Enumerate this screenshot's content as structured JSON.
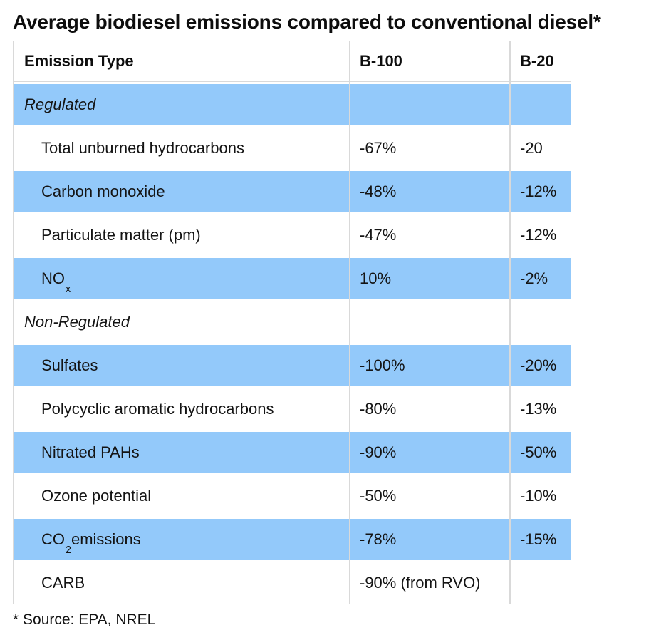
{
  "title": "Average biodiesel emissions compared to conventional diesel*",
  "footnote": "* Source: EPA, NREL",
  "colors": {
    "row_shaded": "#93c9fa",
    "border": "#d9d9d9",
    "text": "#141414"
  },
  "chart_data": {
    "type": "table",
    "title": "Average biodiesel emissions compared to conventional diesel*",
    "columns": [
      "Emission Type",
      "B-100",
      "B-20"
    ],
    "rows": [
      {
        "type": "section",
        "shaded": true,
        "label": "Regulated",
        "label_sub": "",
        "label_rest": "",
        "b100": "",
        "b20": ""
      },
      {
        "type": "item",
        "shaded": false,
        "label": "Total unburned hydrocarbons",
        "label_sub": "",
        "label_rest": "",
        "b100": "-67%",
        "b20": "-20"
      },
      {
        "type": "item",
        "shaded": true,
        "label": "Carbon monoxide",
        "label_sub": "",
        "label_rest": "",
        "b100": "-48%",
        "b20": "-12%"
      },
      {
        "type": "item",
        "shaded": false,
        "label": "Particulate matter (pm)",
        "label_sub": "",
        "label_rest": "",
        "b100": "-47%",
        "b20": "-12%"
      },
      {
        "type": "item",
        "shaded": true,
        "label": "NO",
        "label_sub": "x",
        "label_rest": "",
        "b100": "10%",
        "b20": "-2%"
      },
      {
        "type": "section",
        "shaded": false,
        "label": "Non-Regulated",
        "label_sub": "",
        "label_rest": "",
        "b100": "",
        "b20": ""
      },
      {
        "type": "item",
        "shaded": true,
        "label": "Sulfates",
        "label_sub": "",
        "label_rest": "",
        "b100": "-100%",
        "b20": "-20%"
      },
      {
        "type": "item",
        "shaded": false,
        "label": "Polycyclic aromatic hydrocarbons",
        "label_sub": "",
        "label_rest": "",
        "b100": "-80%",
        "b20": "-13%"
      },
      {
        "type": "item",
        "shaded": true,
        "label": "Nitrated PAHs",
        "label_sub": "",
        "label_rest": "",
        "b100": "-90%",
        "b20": "-50%"
      },
      {
        "type": "item",
        "shaded": false,
        "label": "Ozone potential",
        "label_sub": "",
        "label_rest": "",
        "b100": "-50%",
        "b20": "-10%"
      },
      {
        "type": "item",
        "shaded": true,
        "label": "CO",
        "label_sub": "2",
        "label_rest": " emissions",
        "b100": "-78%",
        "b20": "-15%"
      },
      {
        "type": "item",
        "shaded": false,
        "label": "CARB",
        "label_sub": "",
        "label_rest": "",
        "b100": "-90% (from RVO)",
        "b20": ""
      }
    ],
    "source": "* Source: EPA, NREL"
  }
}
